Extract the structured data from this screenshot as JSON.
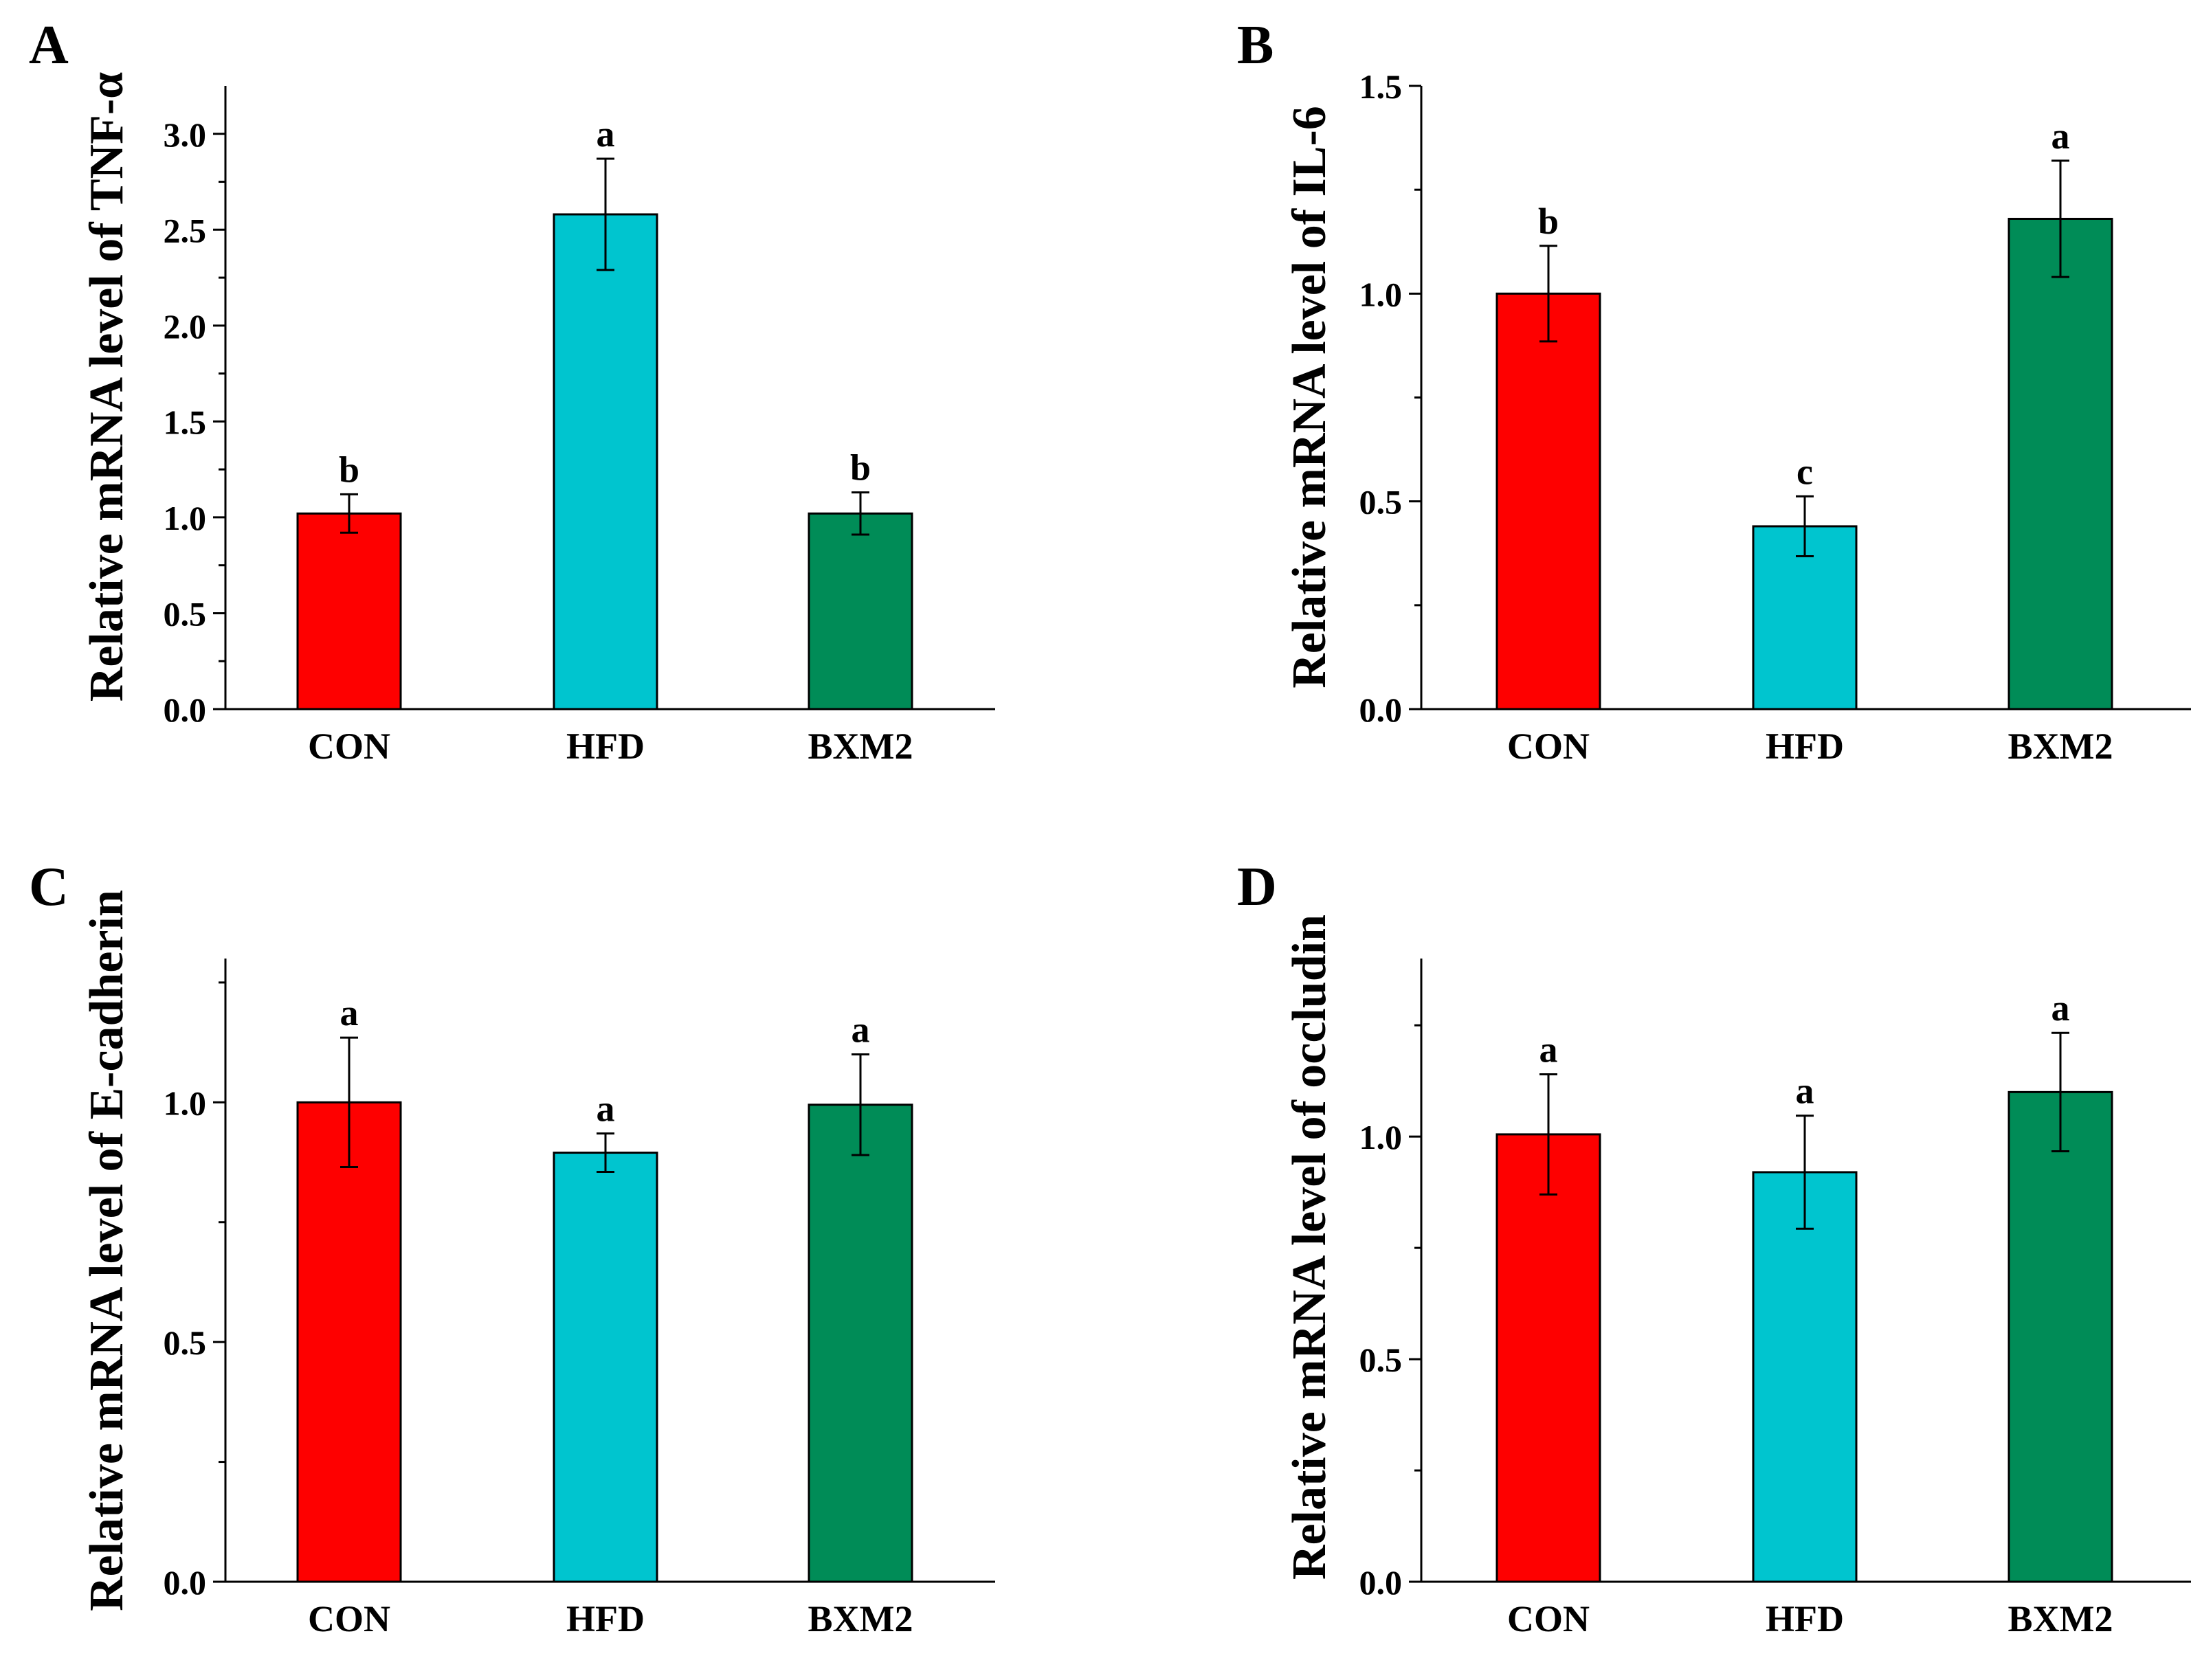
{
  "colors": {
    "CON": "#fe0000",
    "HFD": "#00c5cf",
    "BXM2": "#008c57",
    "axis": "#000000"
  },
  "chart_data": [
    {
      "panel": "A",
      "type": "bar",
      "categories": [
        "CON",
        "HFD",
        "BXM2"
      ],
      "values": [
        1.02,
        2.58,
        1.02
      ],
      "errors": [
        0.1,
        0.29,
        0.11
      ],
      "significance": [
        "b",
        "a",
        "b"
      ],
      "ylabel": "Relative mRNA level of TNF-α",
      "ylim": [
        0,
        3.25
      ],
      "yticks": [
        0.0,
        0.5,
        1.0,
        1.5,
        2.0,
        2.5,
        3.0
      ],
      "ytick_labels": [
        "0.0",
        "0.5",
        "1.0",
        "1.5",
        "2.0",
        "2.5",
        "3.0"
      ]
    },
    {
      "panel": "B",
      "type": "bar",
      "categories": [
        "CON",
        "HFD",
        "BXM2"
      ],
      "values": [
        1.0,
        0.44,
        1.18
      ],
      "errors": [
        0.115,
        0.072,
        0.14
      ],
      "significance": [
        "b",
        "c",
        "a"
      ],
      "ylabel": "Relative mRNA level of IL-6",
      "ylim": [
        0,
        1.5
      ],
      "yticks": [
        0.0,
        0.5,
        1.0,
        1.5
      ],
      "ytick_labels": [
        "0.0",
        "0.5",
        "1.0",
        "1.5"
      ]
    },
    {
      "panel": "C",
      "type": "bar",
      "categories": [
        "CON",
        "HFD",
        "BXM2"
      ],
      "values": [
        1.0,
        0.895,
        0.995
      ],
      "errors": [
        0.135,
        0.04,
        0.105
      ],
      "significance": [
        "a",
        "a",
        "a"
      ],
      "ylabel": "Relative mRNA level of E-cadherin",
      "ylim": [
        0,
        1.3
      ],
      "yticks": [
        0.0,
        0.5,
        1.0
      ],
      "ytick_labels": [
        "0.0",
        "0.5",
        "1.0"
      ]
    },
    {
      "panel": "D",
      "type": "bar",
      "categories": [
        "CON",
        "HFD",
        "BXM2"
      ],
      "values": [
        1.005,
        0.92,
        1.1
      ],
      "errors": [
        0.135,
        0.127,
        0.133
      ],
      "significance": [
        "a",
        "a",
        "a"
      ],
      "ylabel": "Relative mRNA level of occludin",
      "ylim": [
        0,
        1.4
      ],
      "yticks": [
        0.0,
        0.5,
        1.0
      ],
      "ytick_labels": [
        "0.0",
        "0.5",
        "1.0"
      ]
    }
  ]
}
